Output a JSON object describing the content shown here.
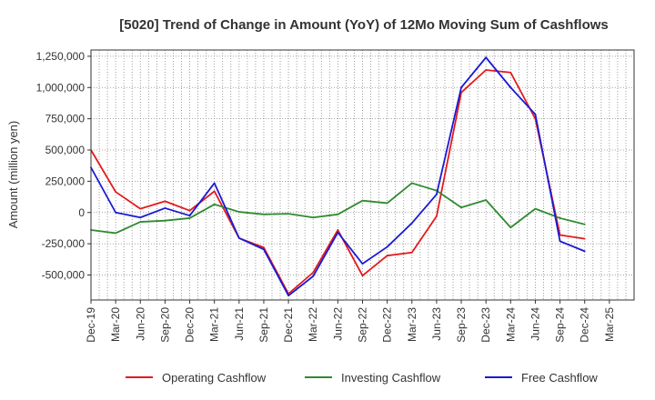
{
  "chart_data": {
    "type": "line",
    "title": "[5020]  Trend of Change in Amount (YoY) of 12Mo Moving Sum of Cashflows",
    "xlabel": "",
    "ylabel": "Amount (million yen)",
    "ylim": [
      -700000,
      1300000
    ],
    "yticks": [
      1250000,
      1000000,
      750000,
      500000,
      250000,
      0,
      -250000,
      -500000
    ],
    "ytick_labels": [
      "1,250,000",
      "1,000,000",
      "750,000",
      "500,000",
      "250,000",
      "0",
      "-250,000",
      "-500,000"
    ],
    "xtick_labels": [
      "Dec-19",
      "Mar-20",
      "Jun-20",
      "Sep-20",
      "Dec-20",
      "Mar-21",
      "Jun-21",
      "Sep-21",
      "Dec-21",
      "Mar-22",
      "Jun-22",
      "Sep-22",
      "Dec-22",
      "Mar-23",
      "Jun-23",
      "Sep-23",
      "Dec-23",
      "Mar-24",
      "Jun-24",
      "Sep-24",
      "Dec-24",
      "Mar-25"
    ],
    "x": [
      "Dec-19",
      "Mar-20",
      "Jun-20",
      "Sep-20",
      "Dec-20",
      "Mar-21",
      "Jun-21",
      "Sep-21",
      "Dec-21",
      "Mar-22",
      "Jun-22",
      "Sep-22",
      "Dec-22",
      "Mar-23",
      "Jun-23",
      "Sep-23",
      "Dec-23",
      "Mar-24",
      "Jun-24",
      "Sep-24",
      "Dec-24"
    ],
    "grid": true,
    "legend_position": "bottom",
    "series": [
      {
        "name": "Operating Cashflow",
        "color": "#e31a1c",
        "values": [
          500000,
          165000,
          30000,
          90000,
          15000,
          170000,
          -205000,
          -280000,
          -650000,
          -480000,
          -140000,
          -505000,
          -345000,
          -320000,
          -30000,
          960000,
          1140000,
          1120000,
          750000,
          -180000,
          -210000
        ]
      },
      {
        "name": "Investing Cashflow",
        "color": "#2e8b2e",
        "values": [
          -140000,
          -165000,
          -75000,
          -65000,
          -45000,
          65000,
          5000,
          -15000,
          -10000,
          -40000,
          -15000,
          95000,
          75000,
          235000,
          175000,
          40000,
          100000,
          -120000,
          30000,
          -45000,
          -95000
        ]
      },
      {
        "name": "Free Cashflow",
        "color": "#1a1ad6",
        "values": [
          360000,
          0,
          -40000,
          35000,
          -25000,
          235000,
          -205000,
          -295000,
          -665000,
          -510000,
          -160000,
          -410000,
          -275000,
          -85000,
          145000,
          1000000,
          1240000,
          1000000,
          785000,
          -230000,
          -310000
        ]
      }
    ]
  }
}
